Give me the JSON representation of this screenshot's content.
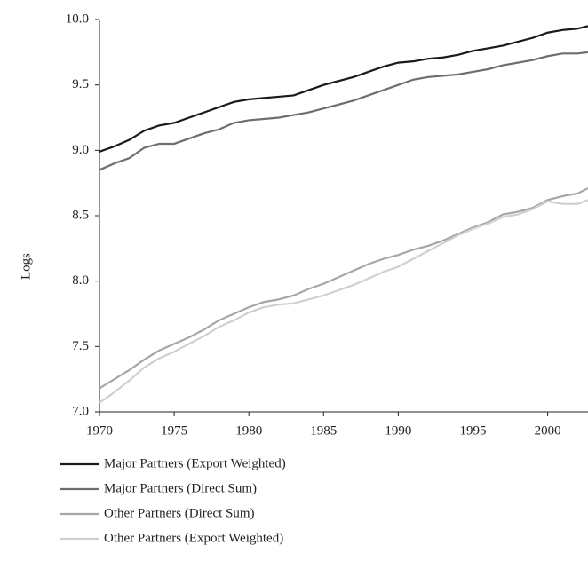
{
  "chart_data": {
    "type": "line",
    "y_label": "Logs",
    "x": [
      1970,
      1971,
      1972,
      1973,
      1974,
      1975,
      1976,
      1977,
      1978,
      1979,
      1980,
      1981,
      1982,
      1983,
      1984,
      1985,
      1986,
      1987,
      1988,
      1989,
      1990,
      1991,
      1992,
      1993,
      1994,
      1995,
      1996,
      1997,
      1998,
      1999,
      2000,
      2001,
      2002,
      2002.7
    ],
    "series": [
      {
        "name": "Major Partners (Export Weighted)",
        "color": "#1a1a1a",
        "values": [
          8.99,
          9.03,
          9.08,
          9.15,
          9.19,
          9.21,
          9.25,
          9.29,
          9.33,
          9.37,
          9.39,
          9.4,
          9.41,
          9.42,
          9.46,
          9.5,
          9.53,
          9.56,
          9.6,
          9.64,
          9.67,
          9.68,
          9.7,
          9.71,
          9.73,
          9.76,
          9.78,
          9.8,
          9.83,
          9.86,
          9.9,
          9.92,
          9.93,
          9.95
        ]
      },
      {
        "name": "Major Partners (Direct Sum)",
        "color": "#6e6e6e",
        "values": [
          8.85,
          8.9,
          8.94,
          9.02,
          9.05,
          9.05,
          9.09,
          9.13,
          9.16,
          9.21,
          9.23,
          9.24,
          9.25,
          9.27,
          9.29,
          9.32,
          9.35,
          9.38,
          9.42,
          9.46,
          9.5,
          9.54,
          9.56,
          9.57,
          9.58,
          9.6,
          9.62,
          9.65,
          9.67,
          9.69,
          9.72,
          9.74,
          9.74,
          9.75
        ]
      },
      {
        "name": "Other Partners (Direct Sum)",
        "color": "#a6a6a6",
        "values": [
          7.18,
          7.25,
          7.32,
          7.4,
          7.47,
          7.52,
          7.57,
          7.63,
          7.7,
          7.75,
          7.8,
          7.84,
          7.86,
          7.89,
          7.94,
          7.98,
          8.03,
          8.08,
          8.13,
          8.17,
          8.2,
          8.24,
          8.27,
          8.31,
          8.36,
          8.41,
          8.45,
          8.51,
          8.53,
          8.56,
          8.62,
          8.65,
          8.67,
          8.71
        ]
      },
      {
        "name": "Other Partners (Export Weighted)",
        "color": "#d0d0d0",
        "values": [
          7.07,
          7.15,
          7.24,
          7.34,
          7.41,
          7.46,
          7.52,
          7.58,
          7.65,
          7.7,
          7.76,
          7.8,
          7.82,
          7.83,
          7.86,
          7.89,
          7.93,
          7.97,
          8.02,
          8.07,
          8.11,
          8.17,
          8.23,
          8.29,
          8.35,
          8.4,
          8.44,
          8.49,
          8.51,
          8.55,
          8.61,
          8.59,
          8.59,
          8.62
        ]
      }
    ],
    "xlim": [
      1970,
      2002.7
    ],
    "xticks": [
      1970,
      1975,
      1980,
      1985,
      1990,
      1995,
      2000
    ],
    "ylim": [
      7,
      10
    ],
    "yticks": [
      {
        "value": 7,
        "label": "7.0"
      },
      7.5,
      {
        "value": 8,
        "label": "8.0"
      },
      8.5,
      {
        "value": 9,
        "label": "9.0"
      },
      9.5,
      {
        "value": 10,
        "label": "10.0"
      }
    ],
    "grid": false,
    "legend": "bottom"
  }
}
